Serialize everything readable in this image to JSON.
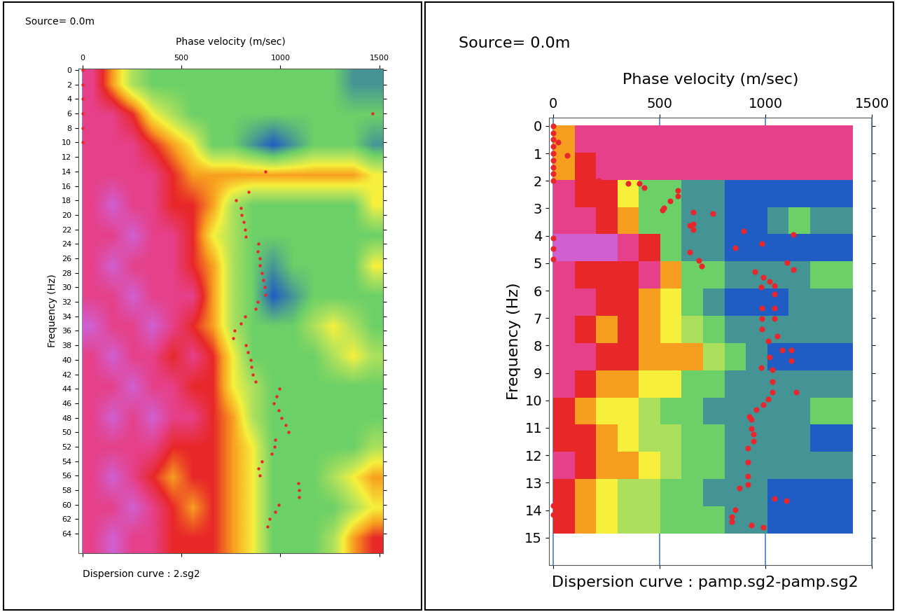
{
  "chart_data": [
    {
      "type": "heatmap",
      "source": "Source= 0.0m",
      "xlabel": "Phase velocity (m/sec)",
      "ylabel": "Frequency (Hz)",
      "caption": "Dispersion curve : 2.sg2",
      "xlim": [
        -20,
        1520
      ],
      "ylim": [
        66.7,
        -0.2
      ],
      "xticks": [
        0,
        500,
        1000,
        1500
      ],
      "yticks": [
        0,
        2,
        4,
        6,
        8,
        10,
        12,
        14,
        16,
        18,
        20,
        22,
        24,
        26,
        28,
        30,
        32,
        34,
        36,
        38,
        40,
        42,
        44,
        46,
        48,
        50,
        52,
        54,
        56,
        58,
        60,
        62,
        64
      ],
      "grid": true,
      "cell_range": [
        0,
        10
      ],
      "cell_x_range": [
        0,
        1520
      ],
      "cell_y_range": [
        0,
        66.7
      ],
      "cells": [
        [
          9,
          7,
          5,
          4,
          4,
          4,
          4,
          4,
          4,
          4,
          4,
          4,
          4,
          3,
          3
        ],
        [
          9,
          9,
          8,
          6,
          5,
          4,
          4,
          4,
          4,
          4,
          4,
          4,
          4,
          4,
          4
        ],
        [
          9,
          9,
          9,
          8,
          7,
          6,
          4,
          4,
          3,
          2,
          3,
          4,
          4,
          4,
          3
        ],
        [
          9,
          9,
          9,
          9,
          8,
          7,
          7,
          7,
          7,
          7,
          7,
          7,
          7,
          7,
          6
        ],
        [
          9,
          10,
          9,
          9,
          8,
          8,
          7,
          5,
          4,
          4,
          4,
          4,
          4,
          4,
          6
        ],
        [
          9,
          9,
          10,
          9,
          9,
          8,
          6,
          5,
          4,
          4,
          4,
          4,
          4,
          4,
          4
        ],
        [
          9,
          10,
          9,
          9,
          9,
          8,
          7,
          5,
          4,
          3,
          4,
          4,
          4,
          4,
          6
        ],
        [
          9,
          9,
          10,
          9,
          9,
          9,
          7,
          5,
          4,
          2,
          3,
          4,
          4,
          4,
          4
        ],
        [
          10,
          9,
          9,
          10,
          9,
          8,
          7,
          5,
          4,
          4,
          4,
          5,
          6,
          5,
          4
        ],
        [
          9,
          10,
          9,
          9,
          8,
          9,
          8,
          6,
          4,
          4,
          4,
          4,
          5,
          6,
          5
        ],
        [
          9,
          9,
          10,
          9,
          9,
          8,
          8,
          6,
          5,
          4,
          4,
          4,
          4,
          4,
          4
        ],
        [
          9,
          10,
          9,
          10,
          9,
          9,
          8,
          7,
          5,
          4,
          4,
          4,
          4,
          4,
          4
        ],
        [
          9,
          9,
          9,
          9,
          8,
          8,
          8,
          7,
          6,
          4,
          4,
          4,
          4,
          4,
          5
        ],
        [
          9,
          10,
          9,
          8,
          7,
          8,
          8,
          7,
          6,
          4,
          4,
          4,
          5,
          6,
          7
        ],
        [
          9,
          9,
          10,
          9,
          8,
          7,
          8,
          7,
          6,
          4,
          4,
          4,
          4,
          5,
          6
        ],
        [
          9,
          10,
          9,
          9,
          8,
          8,
          8,
          7,
          6,
          4,
          4,
          4,
          5,
          7,
          8
        ]
      ],
      "picks": {
        "color": "#e8262b",
        "marker": "o",
        "points": [
          [
            0,
            0
          ],
          [
            0,
            2
          ],
          [
            0,
            4
          ],
          [
            0,
            6
          ],
          [
            0,
            8
          ],
          [
            0,
            10
          ],
          [
            1465,
            6
          ],
          [
            925,
            14
          ],
          [
            840,
            16.8
          ],
          [
            775,
            18
          ],
          [
            800,
            19
          ],
          [
            805,
            20
          ],
          [
            815,
            21
          ],
          [
            820,
            22
          ],
          [
            825,
            23
          ],
          [
            890,
            24
          ],
          [
            885,
            25
          ],
          [
            895,
            26
          ],
          [
            895,
            27
          ],
          [
            905,
            28
          ],
          [
            915,
            29
          ],
          [
            920,
            30
          ],
          [
            925,
            31
          ],
          [
            885,
            32
          ],
          [
            875,
            33
          ],
          [
            820,
            34
          ],
          [
            800,
            35
          ],
          [
            770,
            36
          ],
          [
            760,
            37
          ],
          [
            825,
            38
          ],
          [
            835,
            39
          ],
          [
            850,
            40
          ],
          [
            855,
            41
          ],
          [
            860,
            42
          ],
          [
            875,
            43
          ],
          [
            995,
            44
          ],
          [
            980,
            45
          ],
          [
            965,
            46
          ],
          [
            990,
            47
          ],
          [
            1005,
            48
          ],
          [
            1025,
            49
          ],
          [
            1040,
            50
          ],
          [
            975,
            51
          ],
          [
            970,
            52
          ],
          [
            955,
            53
          ],
          [
            905,
            54
          ],
          [
            890,
            55
          ],
          [
            895,
            56
          ],
          [
            1090,
            57
          ],
          [
            1095,
            58
          ],
          [
            1095,
            59
          ],
          [
            990,
            60
          ],
          [
            975,
            61
          ],
          [
            945,
            62
          ],
          [
            935,
            63
          ]
        ]
      }
    },
    {
      "type": "heatmap",
      "source": "Source= 0.0m",
      "xlabel": "Phase velocity (m/sec)",
      "ylabel": "Frequency (Hz)",
      "caption": "Dispersion curve : pamp.sg2-pamp.sg2",
      "xlim": [
        -20,
        1500
      ],
      "ylim": [
        16,
        -0.3
      ],
      "xticks": [
        0,
        500,
        1000,
        1500
      ],
      "yticks": [
        0,
        1,
        2,
        3,
        4,
        5,
        6,
        7,
        8,
        9,
        10,
        11,
        12,
        13,
        14,
        15
      ],
      "grid": true,
      "cell_range": [
        0,
        10
      ],
      "cell_x_range": [
        0,
        1410
      ],
      "cell_y_range": [
        0,
        14.85
      ],
      "cells": [
        [
          7,
          9,
          9,
          9,
          9,
          9,
          9,
          9,
          9,
          9,
          9,
          9,
          9,
          9
        ],
        [
          7,
          8,
          9,
          9,
          9,
          9,
          9,
          9,
          9,
          9,
          9,
          9,
          9,
          9
        ],
        [
          9,
          8,
          8,
          6,
          4,
          4,
          3,
          3,
          2,
          2,
          2,
          2,
          2,
          2
        ],
        [
          9,
          9,
          8,
          7,
          4,
          4,
          3,
          3,
          2,
          2,
          3,
          4,
          3,
          3
        ],
        [
          10,
          10,
          10,
          9,
          8,
          4,
          3,
          3,
          2,
          2,
          2,
          2,
          2,
          2
        ],
        [
          9,
          8,
          8,
          8,
          9,
          7,
          4,
          4,
          3,
          3,
          3,
          3,
          4,
          4
        ],
        [
          9,
          9,
          8,
          8,
          7,
          6,
          4,
          3,
          2,
          2,
          2,
          3,
          3,
          3
        ],
        [
          9,
          8,
          7,
          8,
          7,
          6,
          5,
          4,
          3,
          3,
          3,
          3,
          3,
          3
        ],
        [
          9,
          9,
          8,
          8,
          7,
          7,
          7,
          5,
          4,
          3,
          2,
          2,
          2,
          2
        ],
        [
          9,
          8,
          7,
          7,
          6,
          6,
          4,
          4,
          3,
          3,
          3,
          3,
          3,
          3
        ],
        [
          8,
          7,
          6,
          6,
          5,
          4,
          4,
          3,
          3,
          3,
          3,
          3,
          4,
          4
        ],
        [
          8,
          8,
          7,
          6,
          5,
          5,
          4,
          4,
          3,
          3,
          3,
          3,
          2,
          2
        ],
        [
          9,
          8,
          7,
          7,
          6,
          5,
          4,
          4,
          3,
          3,
          3,
          3,
          3,
          3
        ],
        [
          8,
          7,
          6,
          5,
          5,
          4,
          4,
          3,
          3,
          3,
          2,
          2,
          2,
          2
        ],
        [
          8,
          7,
          6,
          5,
          5,
          4,
          4,
          4,
          3,
          3,
          2,
          2,
          2,
          2
        ]
      ],
      "picks": {
        "color": "#e8262b",
        "marker": "o",
        "points": [
          [
            0,
            0
          ],
          [
            0,
            0.25
          ],
          [
            0,
            0.5
          ],
          [
            0,
            0.75
          ],
          [
            0,
            1
          ],
          [
            0,
            1.25
          ],
          [
            0,
            1.5
          ],
          [
            0,
            1.75
          ],
          [
            0,
            2
          ],
          [
            23,
            0.6
          ],
          [
            66,
            1.07
          ],
          [
            115,
            1.4
          ],
          [
            165,
            1.73
          ],
          [
            215,
            2.0
          ],
          [
            353,
            2.1
          ],
          [
            406,
            2.1
          ],
          [
            429,
            2.24
          ],
          [
            587,
            2.35
          ],
          [
            587,
            2.55
          ],
          [
            551,
            2.73
          ],
          [
            521,
            2.98
          ],
          [
            515,
            3.06
          ],
          [
            660,
            3.14
          ],
          [
            752,
            3.19
          ],
          [
            660,
            3.57
          ],
          [
            644,
            3.62
          ],
          [
            660,
            3.78
          ],
          [
            898,
            3.83
          ],
          [
            1129,
            3.95
          ],
          [
            983,
            4.29
          ],
          [
            858,
            4.44
          ],
          [
            0,
            4.08
          ],
          [
            0,
            4.46
          ],
          [
            0,
            4.85
          ],
          [
            644,
            4.6
          ],
          [
            687,
            4.9
          ],
          [
            700,
            5.1
          ],
          [
            1102,
            4.97
          ],
          [
            1132,
            5.23
          ],
          [
            950,
            5.31
          ],
          [
            990,
            5.51
          ],
          [
            1017,
            5.66
          ],
          [
            1040,
            5.82
          ],
          [
            980,
            5.87
          ],
          [
            1040,
            6.12
          ],
          [
            1040,
            6.63
          ],
          [
            1040,
            7.02
          ],
          [
            983,
            6.63
          ],
          [
            983,
            7.02
          ],
          [
            983,
            7.4
          ],
          [
            1013,
            7.83
          ],
          [
            1056,
            7.65
          ],
          [
            1079,
            8.16
          ],
          [
            1122,
            8.16
          ],
          [
            1122,
            8.55
          ],
          [
            1017,
            8.42
          ],
          [
            980,
            8.8
          ],
          [
            1030,
            8.88
          ],
          [
            1030,
            9.31
          ],
          [
            1030,
            9.69
          ],
          [
            1142,
            9.69
          ],
          [
            1013,
            9.95
          ],
          [
            990,
            10.15
          ],
          [
            957,
            10.33
          ],
          [
            924,
            10.59
          ],
          [
            931,
            10.7
          ],
          [
            931,
            11.02
          ],
          [
            941,
            11.22
          ],
          [
            941,
            11.48
          ],
          [
            917,
            11.73
          ],
          [
            917,
            12.24
          ],
          [
            917,
            12.76
          ],
          [
            917,
            13.06
          ],
          [
            875,
            13.19
          ],
          [
            1040,
            13.57
          ],
          [
            1096,
            13.65
          ],
          [
            0,
            13.83
          ],
          [
            0,
            14.16
          ],
          [
            858,
            13.98
          ],
          [
            842,
            14.23
          ],
          [
            842,
            14.41
          ],
          [
            931,
            14.54
          ],
          [
            990,
            14.62
          ]
        ]
      }
    }
  ]
}
